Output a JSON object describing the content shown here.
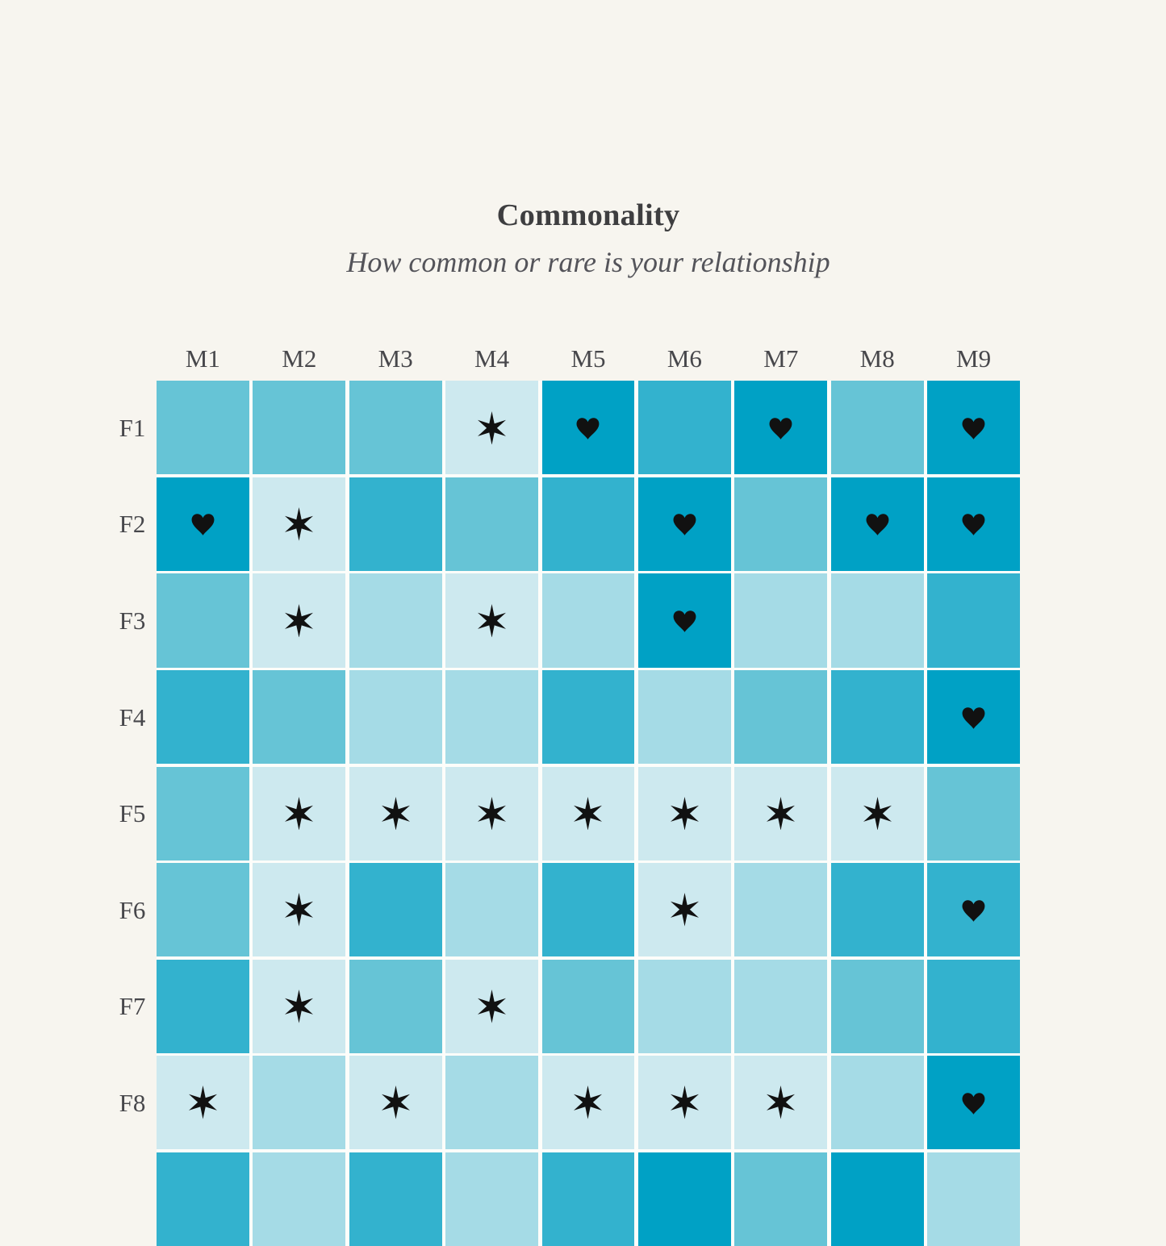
{
  "title": "Commonality",
  "subtitle": "How common or rare is your relationship",
  "chart_data": {
    "type": "heatmap",
    "title": "Commonality",
    "subtitle": "How common or rare is your relationship",
    "col_labels": [
      "M1",
      "M2",
      "M3",
      "M4",
      "M5",
      "M6",
      "M7",
      "M8",
      "M9"
    ],
    "row_labels": [
      "F1",
      "F2",
      "F3",
      "F4",
      "F5",
      "F6",
      "F7",
      "F8"
    ],
    "rows_rendered": 9,
    "row9_note": "ninth row of cells is clipped by the bottom edge of the image; its label is not visible",
    "intensity_levels": [
      [
        3,
        3,
        3,
        1,
        5,
        4,
        5,
        3,
        5
      ],
      [
        5,
        1,
        4,
        3,
        4,
        5,
        3,
        5,
        5
      ],
      [
        3,
        1,
        2,
        1,
        2,
        5,
        2,
        2,
        4
      ],
      [
        4,
        3,
        2,
        2,
        4,
        2,
        3,
        4,
        5
      ],
      [
        3,
        1,
        1,
        1,
        1,
        1,
        1,
        1,
        3
      ],
      [
        3,
        1,
        4,
        2,
        4,
        1,
        2,
        4,
        4
      ],
      [
        4,
        1,
        3,
        1,
        3,
        2,
        2,
        3,
        4
      ],
      [
        1,
        2,
        1,
        2,
        1,
        1,
        1,
        2,
        5
      ],
      [
        4,
        2,
        4,
        2,
        4,
        5,
        3,
        5,
        2
      ]
    ],
    "symbols": [
      [
        "",
        "",
        "",
        "star",
        "heart",
        "",
        "heart",
        "",
        "heart"
      ],
      [
        "heart",
        "star",
        "",
        "",
        "",
        "heart",
        "",
        "heart",
        "heart"
      ],
      [
        "",
        "star",
        "",
        "star",
        "",
        "heart",
        "",
        "",
        ""
      ],
      [
        "",
        "",
        "",
        "",
        "",
        "",
        "",
        "",
        "heart"
      ],
      [
        "",
        "star",
        "star",
        "star",
        "star",
        "star",
        "star",
        "star",
        ""
      ],
      [
        "",
        "star",
        "",
        "",
        "",
        "star",
        "",
        "",
        "heart"
      ],
      [
        "",
        "star",
        "",
        "star",
        "",
        "",
        "",
        "",
        ""
      ],
      [
        "star",
        "",
        "star",
        "",
        "star",
        "star",
        "star",
        "",
        "heart"
      ],
      [
        "",
        "",
        "",
        "",
        "",
        "",
        "",
        "",
        ""
      ]
    ],
    "palette": {
      "1": "#cde9ef",
      "2": "#a5dbe6",
      "3": "#66c4d6",
      "4": "#33b2ce",
      "5": "#00a1c5"
    },
    "legend": "none",
    "grid": "white gutters between square cells"
  },
  "colors": {
    "background": "#f7f5ef",
    "gutter": "#fdfdfa",
    "symbol": "#111111",
    "title_text": "#3e3e40",
    "subtitle_text": "#54545a",
    "label_text": "#47474b"
  },
  "icons": {
    "star": "six-pointed-black-star",
    "heart": "black-heart-suit"
  }
}
